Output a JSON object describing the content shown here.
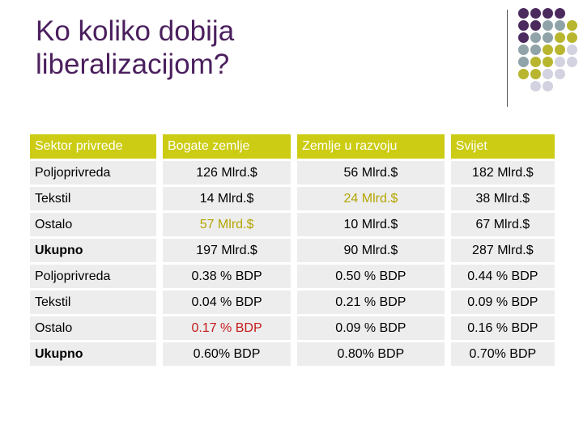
{
  "title_line1": "Ko koliko dobija",
  "title_line2": "liberalizacijom?",
  "colors": {
    "title": "#4b1f5e",
    "header_bg": "#cccc14",
    "row_bg": "#ededed",
    "highlight_gold": "#b3a400",
    "highlight_red": "#c41a1a",
    "dot_purple": "#4b2a5e",
    "dot_teal": "#8fa3a8",
    "dot_olive": "#b8b62e",
    "dot_lavender": "#d2d2e0"
  },
  "table": {
    "headers": [
      "Sektor privrede",
      "Bogate zemlje",
      "Zemlje u razvoju",
      "Svijet"
    ],
    "rows": [
      {
        "label": "Poljoprivreda",
        "v1": "126 Mlrd.$",
        "v2": "56 Mlrd.$",
        "v3": "182 Mlrd.$"
      },
      {
        "label": "Tekstil",
        "v1": "14 Mlrd.$",
        "v2": "24 Mlrd.$",
        "v3": "38 Mlrd.$"
      },
      {
        "label": "Ostalo",
        "v1": "57 Mlrd.$",
        "v2": "10 Mlrd.$",
        "v3": "67 Mlrd.$"
      },
      {
        "label": "Ukupno",
        "v1": "197 Mlrd.$",
        "v2": "90 Mlrd.$",
        "v3": "287 Mlrd.$"
      },
      {
        "label": "Poljoprivreda",
        "v1": "0.38 % BDP",
        "v2": "0.50 % BDP",
        "v3": "0.44 % BDP"
      },
      {
        "label": "Tekstil",
        "v1": "0.04 % BDP",
        "v2": "0.21 % BDP",
        "v3": "0.09 % BDP"
      },
      {
        "label": "Ostalo",
        "v1": "0.17 % BDP",
        "v2": "0.09 % BDP",
        "v3": "0.16 % BDP"
      },
      {
        "label": "Ukupno",
        "v1": "0.60% BDP",
        "v2": "0.80% BDP",
        "v3": "0.70% BDP"
      }
    ]
  }
}
